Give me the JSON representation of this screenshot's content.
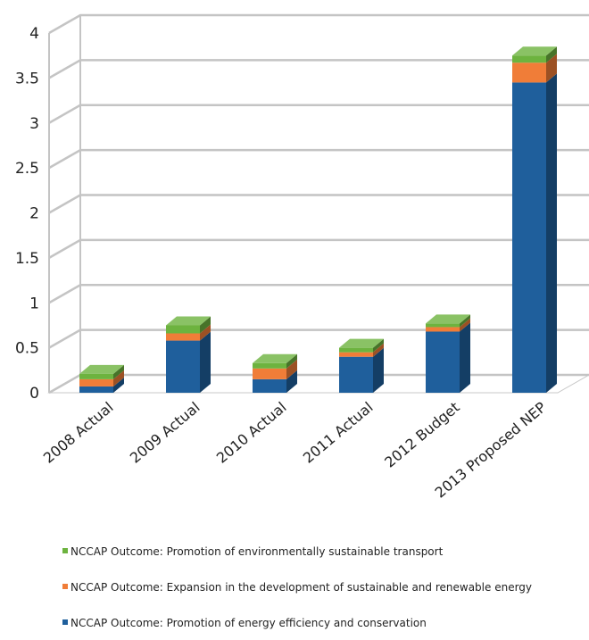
{
  "chart_data": {
    "type": "bar",
    "stacked": true,
    "categories": [
      "2008 Actual",
      "2009 Actual",
      "2010 Actual",
      "2011 Actual",
      "2012 Budget",
      "2013 Proposed NEP"
    ],
    "series": [
      {
        "name": "NCCAP Outcome: Promotion of energy efficiency and conservation",
        "color": "#1f5f9c",
        "values": [
          0.07,
          0.58,
          0.15,
          0.4,
          0.68,
          3.45
        ]
      },
      {
        "name": "NCCAP Outcome: Expansion in the development of sustainable and renewable energy",
        "color": "#f07d38",
        "values": [
          0.08,
          0.08,
          0.12,
          0.05,
          0.05,
          0.22
        ]
      },
      {
        "name": "NCCAP Outcome: Promotion of environmentally sustainable transport",
        "color": "#6db33f",
        "values": [
          0.06,
          0.09,
          0.06,
          0.05,
          0.04,
          0.08
        ]
      }
    ],
    "yticks": [
      "0",
      "0.5",
      "1",
      "1.5",
      "2",
      "2.5",
      "3",
      "3.5",
      "4"
    ],
    "ylim": [
      0,
      4
    ],
    "grid": true,
    "legend_position": "bottom",
    "title": "",
    "xlabel": "",
    "ylabel": ""
  }
}
